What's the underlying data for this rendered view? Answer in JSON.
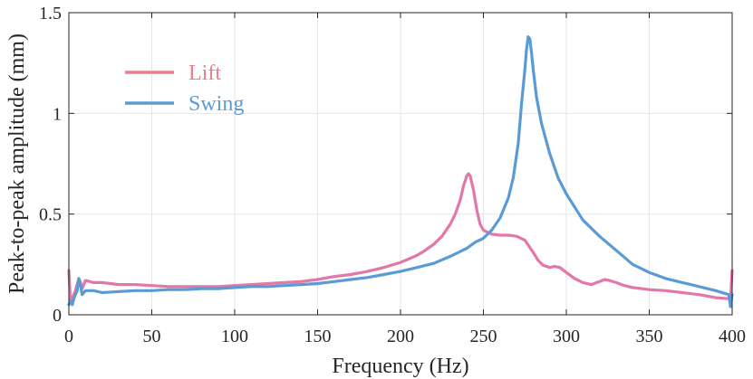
{
  "chart_data": {
    "type": "line",
    "title": "",
    "xlabel": "Frequency (Hz)",
    "ylabel": "Peak-to-peak amplitude (mm)",
    "xlim": [
      0,
      400
    ],
    "ylim": [
      0,
      1.5
    ],
    "xticks": [
      0,
      50,
      100,
      150,
      200,
      250,
      300,
      350,
      400
    ],
    "yticks": [
      0,
      0.5,
      1,
      1.5
    ],
    "ytick_labels": [
      "0",
      "0.5",
      "1",
      "1.5"
    ],
    "grid": true,
    "legend_position": "top-left",
    "series": [
      {
        "name": "Lift",
        "color": "#e377a8",
        "legend_color": "#e8808f",
        "x": [
          0,
          1,
          2,
          3,
          4,
          5,
          6,
          7,
          8,
          10,
          15,
          20,
          30,
          40,
          50,
          60,
          70,
          80,
          90,
          100,
          110,
          120,
          130,
          140,
          150,
          160,
          170,
          180,
          190,
          200,
          210,
          215,
          220,
          225,
          230,
          233,
          236,
          238,
          240,
          241,
          242,
          244,
          246,
          248,
          250,
          255,
          260,
          265,
          270,
          275,
          280,
          283,
          286,
          290,
          293,
          296,
          300,
          305,
          310,
          315,
          320,
          323,
          326,
          330,
          335,
          340,
          350,
          360,
          370,
          380,
          390,
          398,
          399,
          400
        ],
        "y": [
          0.22,
          0.06,
          0.08,
          0.1,
          0.12,
          0.15,
          0.18,
          0.16,
          0.13,
          0.17,
          0.16,
          0.16,
          0.15,
          0.15,
          0.145,
          0.14,
          0.14,
          0.14,
          0.14,
          0.145,
          0.15,
          0.155,
          0.16,
          0.165,
          0.175,
          0.19,
          0.2,
          0.215,
          0.235,
          0.26,
          0.295,
          0.32,
          0.35,
          0.39,
          0.45,
          0.5,
          0.57,
          0.64,
          0.69,
          0.7,
          0.69,
          0.62,
          0.52,
          0.45,
          0.42,
          0.4,
          0.395,
          0.395,
          0.39,
          0.37,
          0.31,
          0.27,
          0.245,
          0.235,
          0.24,
          0.235,
          0.21,
          0.18,
          0.16,
          0.15,
          0.165,
          0.175,
          0.17,
          0.16,
          0.145,
          0.135,
          0.125,
          0.12,
          0.11,
          0.1,
          0.085,
          0.08,
          0.08,
          0.22
        ]
      },
      {
        "name": "Swing",
        "color": "#5b9bd5",
        "legend_color": "#5b9bd5",
        "x": [
          0,
          1,
          2,
          3,
          4,
          5,
          6,
          7,
          8,
          10,
          15,
          20,
          30,
          40,
          50,
          60,
          70,
          80,
          90,
          100,
          110,
          120,
          130,
          140,
          150,
          160,
          170,
          180,
          190,
          200,
          210,
          220,
          230,
          240,
          245,
          250,
          255,
          260,
          265,
          268,
          271,
          273,
          275,
          276,
          277,
          278,
          279,
          280,
          282,
          285,
          290,
          295,
          300,
          310,
          320,
          330,
          340,
          350,
          360,
          370,
          380,
          390,
          398,
          399,
          400
        ],
        "y": [
          0.05,
          0.07,
          0.05,
          0.08,
          0.1,
          0.12,
          0.18,
          0.15,
          0.1,
          0.12,
          0.12,
          0.11,
          0.115,
          0.12,
          0.12,
          0.125,
          0.125,
          0.13,
          0.13,
          0.135,
          0.14,
          0.14,
          0.145,
          0.15,
          0.155,
          0.165,
          0.175,
          0.185,
          0.2,
          0.215,
          0.235,
          0.255,
          0.29,
          0.33,
          0.36,
          0.38,
          0.42,
          0.48,
          0.58,
          0.68,
          0.85,
          1.05,
          1.22,
          1.32,
          1.38,
          1.37,
          1.3,
          1.22,
          1.08,
          0.95,
          0.8,
          0.68,
          0.6,
          0.47,
          0.39,
          0.32,
          0.25,
          0.21,
          0.18,
          0.16,
          0.14,
          0.12,
          0.1,
          0.04,
          0.1
        ]
      }
    ]
  }
}
